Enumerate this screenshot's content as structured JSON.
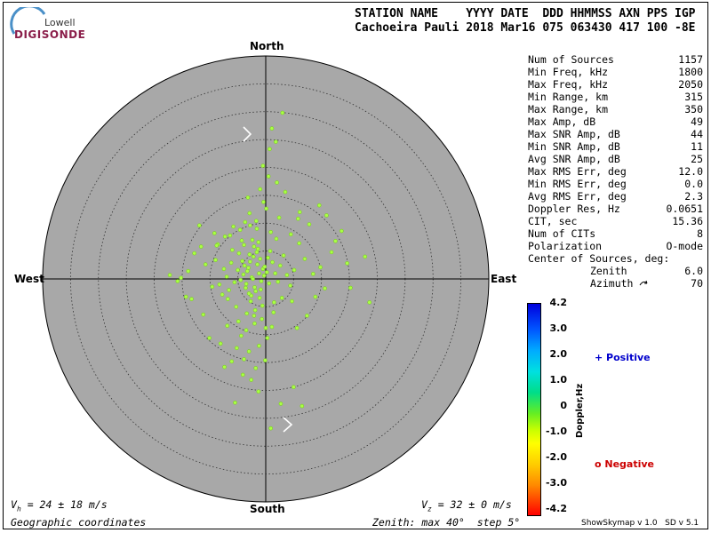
{
  "logo": {
    "line1": "Lowell",
    "line2": "DIGISONDE"
  },
  "header": {
    "columns_line": "STATION NAME    YYYY DATE  DDD HHMMSS AXN PPS IGP",
    "values_line": "Cachoeira Pauli 2018 Mar16 075 063430 417 100 -8E"
  },
  "directions": {
    "north": "North",
    "south": "South",
    "east": "East",
    "west": "West"
  },
  "stats": [
    {
      "label": "Num of Sources",
      "value": "1157"
    },
    {
      "label": "Min Freq, kHz",
      "value": "1800"
    },
    {
      "label": "Max Freq, kHz",
      "value": "2050"
    },
    {
      "label": "Min Range, km",
      "value": "315"
    },
    {
      "label": "Max Range, km",
      "value": "350"
    },
    {
      "label": "Max Amp, dB",
      "value": "49"
    },
    {
      "label": "Max SNR Amp, dB",
      "value": "44"
    },
    {
      "label": "Min SNR Amp, dB",
      "value": "11"
    },
    {
      "label": "Avg SNR Amp, dB",
      "value": "25"
    },
    {
      "label": "Max RMS Err, deg",
      "value": "12.0"
    },
    {
      "label": "Min RMS Err, deg",
      "value": "0.0"
    },
    {
      "label": "Avg RMS Err, deg",
      "value": "2.3"
    },
    {
      "label": "Doppler Res, Hz",
      "value": "0.0651"
    },
    {
      "label": "CIT, sec",
      "value": "15.36"
    },
    {
      "label": "Num of CITs",
      "value": "8"
    },
    {
      "label": "Polarization",
      "value": "O-mode"
    }
  ],
  "center": {
    "title": "Center of Sources, deg:",
    "zenith_label": "Zenith",
    "zenith_value": "6.0",
    "azimuth_label": "Azimuth",
    "azimuth_value": "70"
  },
  "colorbar": {
    "label": "Doppler,Hz",
    "ticks": [
      "4.2",
      "3.0",
      "2.0",
      "1.0",
      "0",
      "-1.0",
      "-2.0",
      "-3.0",
      "-4.2"
    ],
    "positive": "+ Positive",
    "negative": "o Negative"
  },
  "footer": {
    "vh": "V",
    "vh_sub": "h",
    "vh_rest": " = 24 ± 18 m/s",
    "vz": "V",
    "vz_sub": "z",
    "vz_rest": " = 32 ± 0 m/s",
    "coords": "Geographic coordinates",
    "zenith_info": "Zenith: max 40°  step 5°",
    "version": "ShowSkymap v 1.0   SD v 5.1"
  },
  "colors": {
    "disk": "#a8a8a8",
    "points": "#aaff44",
    "point_edge": "#7acc22"
  },
  "chart_data": {
    "type": "scatter",
    "coordinate_system": "zenith-azimuth polar (geographic)",
    "zenith_max_deg": 40,
    "zenith_step_deg": 5,
    "series": [
      {
        "x": [
          -1.2,
          -2.5,
          -3.1,
          -0.8,
          -4.0,
          -2.0,
          -1.5,
          -3.5,
          -0.5,
          -2.8,
          -1.8,
          -3.8,
          -2.2,
          -0.3,
          -4.5,
          -1.0,
          -2.6,
          -3.3,
          -1.6,
          0.2,
          0.6,
          -0.9,
          -2.3,
          -3.0,
          -1.4,
          -2.9,
          -4.2,
          -0.2,
          0.4,
          -1.1,
          -3.6,
          -2.1,
          -5.0,
          -5.6,
          -6.2,
          -7.0,
          -4.8,
          -6.6,
          -7.5,
          -8.3,
          -9.0,
          -6.0,
          -3.9,
          -2.4,
          -1.3,
          0.8,
          1.2,
          1.7,
          2.2,
          2.6,
          3.2,
          3.8,
          4.4,
          5.1,
          6.0,
          7.0,
          8.5,
          9.8,
          10.6,
          11.8,
          1.5,
          2.9,
          -0.6,
          -1.9,
          -2.7,
          -3.4,
          -5.3,
          -6.8,
          -7.8,
          -9.6,
          -10.8,
          -11.6,
          -12.8,
          -13.9,
          -14.3,
          -15.2,
          -9.2,
          -7.3,
          -4.6,
          -2.8,
          -1.7,
          0.9,
          1.9,
          2.4,
          0.1,
          -0.4,
          -1.6,
          -2.9,
          -3.7,
          -4.3,
          -5.8,
          -6.4,
          -8.6,
          -3.2,
          -1.0,
          0.5,
          -0.7,
          -2.0,
          -3.5,
          -4.9,
          12.5,
          14.6,
          15.2,
          17.8,
          13.6,
          10.9,
          9.6,
          7.8,
          6.1,
          3.5,
          2.0,
          -0.5,
          0.7,
          1.1,
          3.0,
          4.5,
          5.8,
          1.8,
          -2.1,
          -4.4,
          -6.9,
          -8.1,
          -10.1,
          -11.2,
          -13.3,
          -15.8,
          -17.2,
          -11.9,
          -8.8,
          -5.2,
          -3.0,
          -1.2,
          -0.1,
          0.3,
          -1.8,
          -2.6,
          -3.9,
          -1.3,
          -4.1,
          -5.5,
          0.0,
          1.4,
          -6.1,
          -7.4,
          4.7,
          8.9,
          7.4,
          5.6,
          5.0,
          2.7,
          0.9,
          18.6,
          1.1,
          6.5
        ],
        "y": [
          1.0,
          0.3,
          2.0,
          -0.4,
          0.8,
          -1.5,
          2.6,
          -0.9,
          1.8,
          3.1,
          -2.2,
          2.4,
          4.0,
          0.6,
          -0.2,
          3.6,
          -3.0,
          1.4,
          4.8,
          1.2,
          -0.8,
          -1.9,
          0.0,
          -2.6,
          5.4,
          4.4,
          3.2,
          2.2,
          3.8,
          -3.4,
          -1.6,
          5.8,
          1.6,
          -0.6,
          2.9,
          0.4,
          4.6,
          -2.0,
          1.8,
          -1.0,
          3.4,
          5.2,
          6.1,
          7.0,
          6.6,
          5.0,
          3.0,
          1.0,
          -0.5,
          2.4,
          4.2,
          0.7,
          -1.2,
          1.6,
          6.4,
          3.6,
          0.9,
          2.1,
          -1.7,
          4.8,
          -4.2,
          -3.4,
          -4.8,
          -5.6,
          -4.0,
          -6.2,
          -5.0,
          -3.6,
          -2.8,
          -1.4,
          2.6,
          5.8,
          4.6,
          1.4,
          -3.2,
          0.2,
          8.2,
          7.6,
          8.8,
          9.6,
          10.4,
          8.4,
          7.2,
          11.0,
          12.6,
          13.8,
          9.0,
          11.8,
          10.2,
          6.9,
          9.4,
          7.8,
          6.2,
          14.6,
          16.1,
          18.4,
          -7.2,
          -8.0,
          -9.2,
          -7.6,
          6.8,
          2.8,
          -1.6,
          4.0,
          8.6,
          11.4,
          13.2,
          9.8,
          12.0,
          15.6,
          17.3,
          20.3,
          23.3,
          27.0,
          29.8,
          8.0,
          10.8,
          24.6,
          -6.6,
          -10.2,
          -8.4,
          -11.6,
          -10.6,
          -6.4,
          -3.6,
          -0.4,
          0.7,
          9.6,
          6.0,
          -12.4,
          -13.0,
          -12.0,
          -14.6,
          -10.6,
          -16.0,
          -18.1,
          -14.4,
          -20.2,
          -17.2,
          -22.2,
          -8.8,
          -6.0,
          -14.8,
          -15.8,
          -4.0,
          -3.2,
          -6.6,
          -8.8,
          -19.4,
          -22.4,
          -26.8,
          -4.2,
          -8.6,
          -22.8
        ]
      }
    ]
  }
}
